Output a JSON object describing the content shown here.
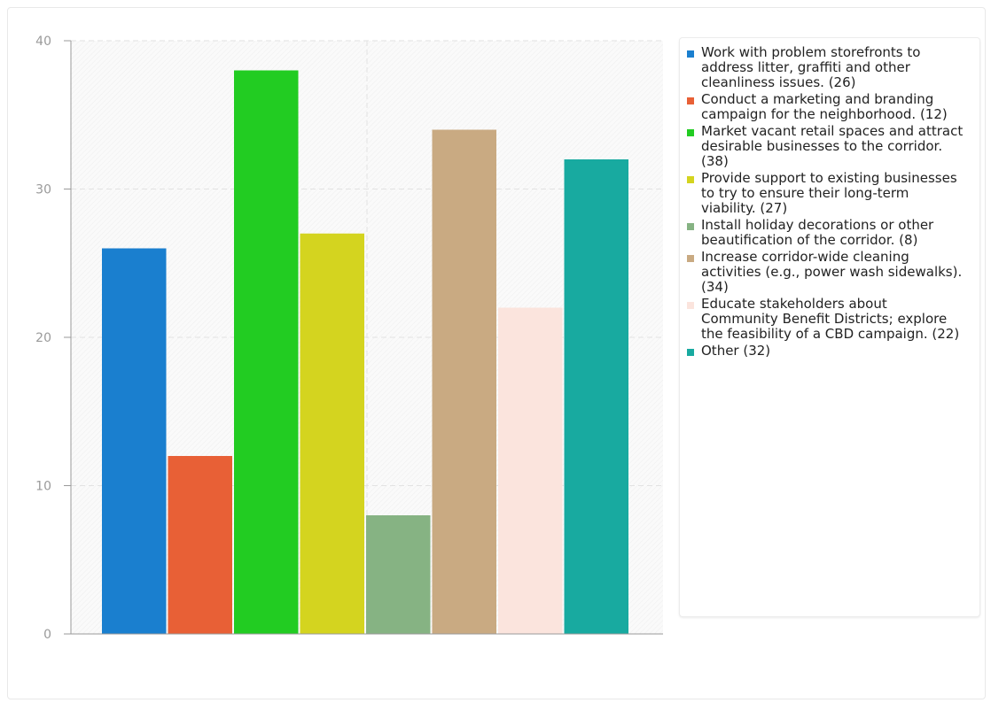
{
  "chart_data": {
    "type": "bar",
    "title": "",
    "xlabel": "",
    "ylabel": "",
    "ylim": [
      0,
      40
    ],
    "yticks": [
      0,
      10,
      20,
      30,
      40
    ],
    "grid": true,
    "legend_position": "right",
    "series": [
      {
        "name": "Work with problem storefronts to address litter, graffiti and other cleanliness issues. (26)",
        "value": 26,
        "color": "#1a7fcf"
      },
      {
        "name": "Conduct a marketing and branding campaign for the neighborhood. (12)",
        "value": 12,
        "color": "#e86036"
      },
      {
        "name": "Market vacant retail spaces and attract desirable businesses to the corridor. (38)",
        "value": 38,
        "color": "#22cc22"
      },
      {
        "name": "Provide support to existing businesses to try to ensure their long-term viability. (27)",
        "value": 27,
        "color": "#d4d41f"
      },
      {
        "name": "Install holiday decorations or other beautification of the corridor. (8)",
        "value": 8,
        "color": "#86b383"
      },
      {
        "name": "Increase corridor-wide cleaning activities (e.g., power wash sidewalks). (34)",
        "value": 34,
        "color": "#c9aa82"
      },
      {
        "name": "Educate stakeholders about Community Benefit Districts; explore the feasibility of a CBD campaign. (22)",
        "value": 22,
        "color": "#fbe4dd"
      },
      {
        "name": "Other (32)",
        "value": 32,
        "color": "#18aaa0"
      }
    ]
  }
}
